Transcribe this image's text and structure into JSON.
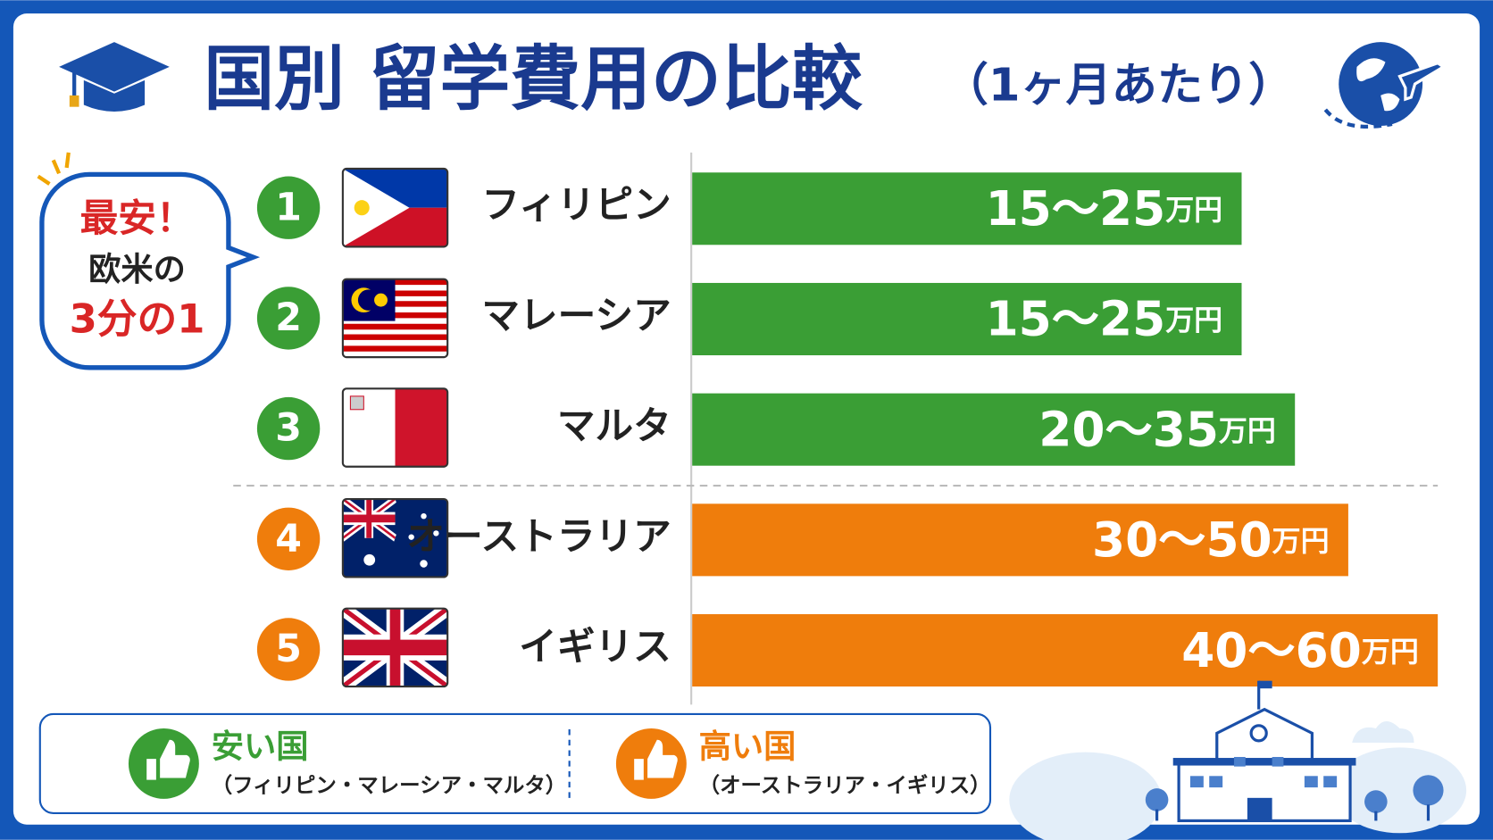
{
  "header": {
    "title": "国別 留学費用の比較",
    "subtitle": "（1ヶ月あたり）"
  },
  "callout": {
    "lines": [
      "最安！",
      "欧米の",
      "3分の1"
    ]
  },
  "rows": [
    {
      "rank": "1",
      "country": "フィリピン",
      "range": "15〜25",
      "unit": "万円"
    },
    {
      "rank": "2",
      "country": "マレーシア",
      "range": "15〜25",
      "unit": "万円"
    },
    {
      "rank": "3",
      "country": "マルタ",
      "range": "20〜35",
      "unit": "万円"
    },
    {
      "rank": "4",
      "country": "オーストラリア",
      "range": "30〜50",
      "unit": "万円"
    },
    {
      "rank": "5",
      "country": "イギリス",
      "range": "40〜60",
      "unit": "万円"
    }
  ],
  "legend": {
    "cheap": {
      "title": "安い国",
      "note": "（フィリピン・マレーシア・マルタ）"
    },
    "expensive": {
      "title": "高い国",
      "note": "（オーストラリア・イギリス）"
    }
  }
}
